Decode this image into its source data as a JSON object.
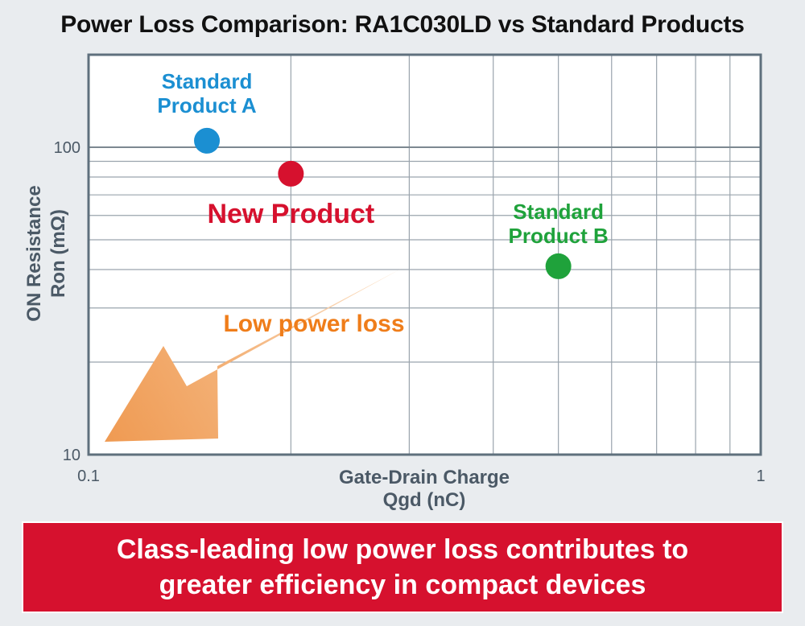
{
  "title": "Power Loss Comparison: RA1C030LD vs Standard Products",
  "chart_data": {
    "type": "scatter",
    "xscale": "log",
    "yscale": "log",
    "xlim": [
      0.1,
      1
    ],
    "ylim": [
      10,
      100
    ],
    "xlabel": "Gate-Drain Charge\nQgd (nC)",
    "ylabel": "ON Resistance\nRon (mΩ)",
    "xticks": [
      "0.1",
      "1"
    ],
    "yticks": [
      "10",
      "100"
    ],
    "grid": true,
    "points": [
      {
        "name": "Standard Product A",
        "x": 0.15,
        "y": 105,
        "color": "#1b8fd2"
      },
      {
        "name": "New Product",
        "x": 0.2,
        "y": 82,
        "color": "#d6112e"
      },
      {
        "name": "Standard Product B",
        "x": 0.5,
        "y": 41,
        "color": "#1fa23b"
      }
    ],
    "annotations": [
      {
        "text": "Low power loss",
        "color": "#ef7d1a"
      }
    ]
  },
  "colors": {
    "accent_red": "#d6112e",
    "arrow_orange": "#ef7d1a",
    "plot_border": "#5f707d",
    "grid": "#9aa4ad"
  },
  "footer": {
    "banner_text": "Class-leading low power loss contributes to\ngreater efficiency in compact devices"
  }
}
